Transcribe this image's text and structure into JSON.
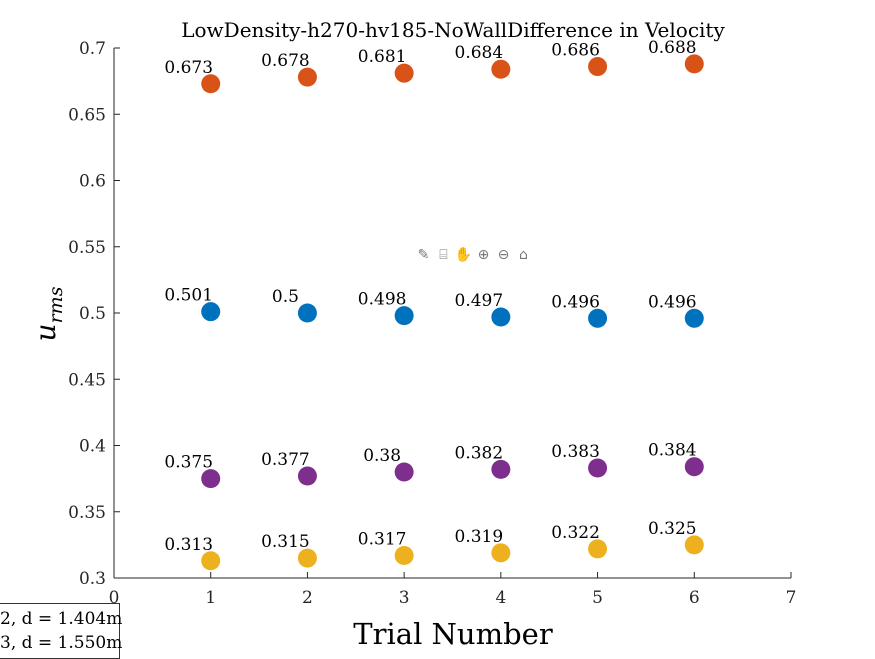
{
  "chart_data": {
    "type": "scatter",
    "title": "LowDensity-h270-hv185-NoWallDifference in Velocity",
    "xlabel": "Trial Number",
    "ylabel": "u",
    "ylabel_subscript": "rms",
    "xlim": [
      0,
      7
    ],
    "ylim": [
      0.3,
      0.7
    ],
    "xticks": [
      0,
      1,
      2,
      3,
      4,
      5,
      6,
      7
    ],
    "yticks": [
      0.3,
      0.35,
      0.4,
      0.45,
      0.5,
      0.55,
      0.6,
      0.65,
      0.7
    ],
    "x": [
      1,
      2,
      3,
      4,
      5,
      6
    ],
    "series": [
      {
        "color": "#D95319",
        "values": [
          0.673,
          0.678,
          0.681,
          0.684,
          0.686,
          0.688
        ],
        "labels": [
          "0.673",
          "0.678",
          "0.681",
          "0.684",
          "0.686",
          "0.688"
        ]
      },
      {
        "color": "#0072BD",
        "values": [
          0.501,
          0.5,
          0.498,
          0.497,
          0.496,
          0.496
        ],
        "labels": [
          "0.501",
          "0.5",
          "0.498",
          "0.497",
          "0.496",
          "0.496"
        ]
      },
      {
        "color": "#7E2F8E",
        "values": [
          0.375,
          0.377,
          0.38,
          0.382,
          0.383,
          0.384
        ],
        "labels": [
          "0.375",
          "0.377",
          "0.38",
          "0.382",
          "0.383",
          "0.384"
        ]
      },
      {
        "color": "#EDB120",
        "values": [
          0.313,
          0.315,
          0.317,
          0.319,
          0.322,
          0.325
        ],
        "labels": [
          "0.313",
          "0.315",
          "0.317",
          "0.319",
          "0.322",
          "0.325"
        ]
      }
    ],
    "grid": false,
    "legend_placement": "bottom-left",
    "legend_entries": [
      "2, d = 1.404m",
      "3, d = 1.550m"
    ]
  },
  "toolbar": {
    "icons": [
      "brush-icon",
      "data-tip-icon",
      "pan-icon",
      "zoom-in-icon",
      "zoom-out-icon",
      "home-icon"
    ]
  }
}
